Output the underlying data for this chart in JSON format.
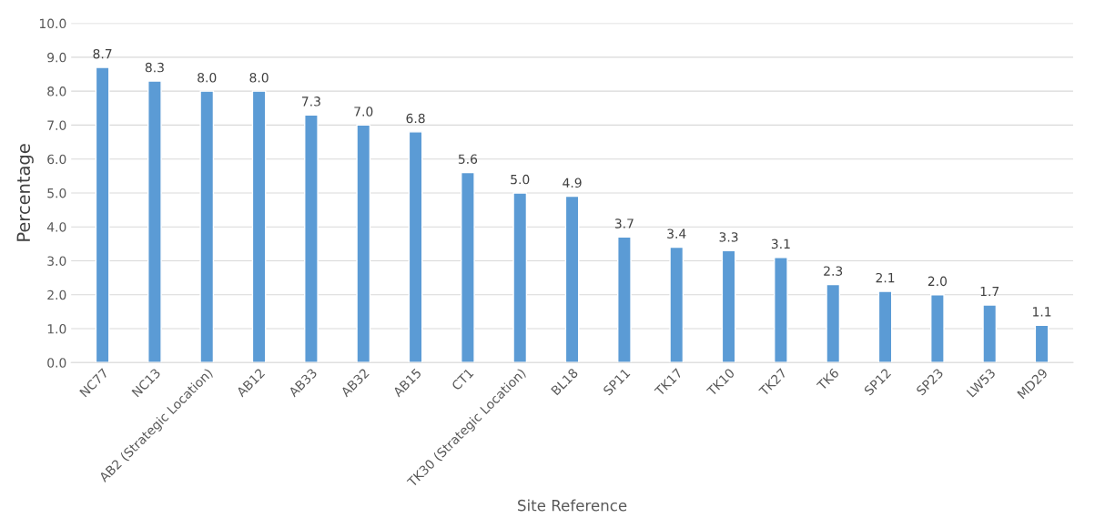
{
  "chart_data": {
    "type": "bar",
    "xlabel": "Site Reference",
    "ylabel": "Percentage",
    "categories": [
      "NC77",
      "NC13",
      "AB2 (Strategic Location)",
      "AB12",
      "AB33",
      "AB32",
      "AB15",
      "CT1",
      "TK30 (Strategic Location)",
      "BL18",
      "SP11",
      "TK17",
      "TK10",
      "TK27",
      "TK6",
      "SP12",
      "SP23",
      "LW53",
      "MD29"
    ],
    "values": [
      8.7,
      8.3,
      8.0,
      8.0,
      7.3,
      7.0,
      6.8,
      5.6,
      5.0,
      4.9,
      3.7,
      3.4,
      3.3,
      3.1,
      2.3,
      2.1,
      2.0,
      1.7,
      1.1
    ],
    "value_labels": [
      "8.7",
      "8.3",
      "8.0",
      "8.0",
      "7.3",
      "7.0",
      "6.8",
      "5.6",
      "5.0",
      "4.9",
      "3.7",
      "3.4",
      "3.3",
      "3.1",
      "2.3",
      "2.1",
      "2.0",
      "1.7",
      "1.1"
    ],
    "color": "#5b9bd5",
    "ylim": [
      0,
      10
    ],
    "yticks": [
      {
        "value": 0,
        "label": "0.0"
      },
      {
        "value": 1,
        "label": "1.0"
      },
      {
        "value": 2,
        "label": "2.0"
      },
      {
        "value": 3,
        "label": "3.0"
      },
      {
        "value": 4,
        "label": "4.0"
      },
      {
        "value": 5,
        "label": "5.0"
      },
      {
        "value": 6,
        "label": "6.0"
      },
      {
        "value": 7,
        "label": "7.0"
      },
      {
        "value": 8,
        "label": "8.0"
      },
      {
        "value": 9,
        "label": "9.0"
      },
      {
        "value": 10,
        "label": "10.0"
      }
    ],
    "grid": "y"
  }
}
